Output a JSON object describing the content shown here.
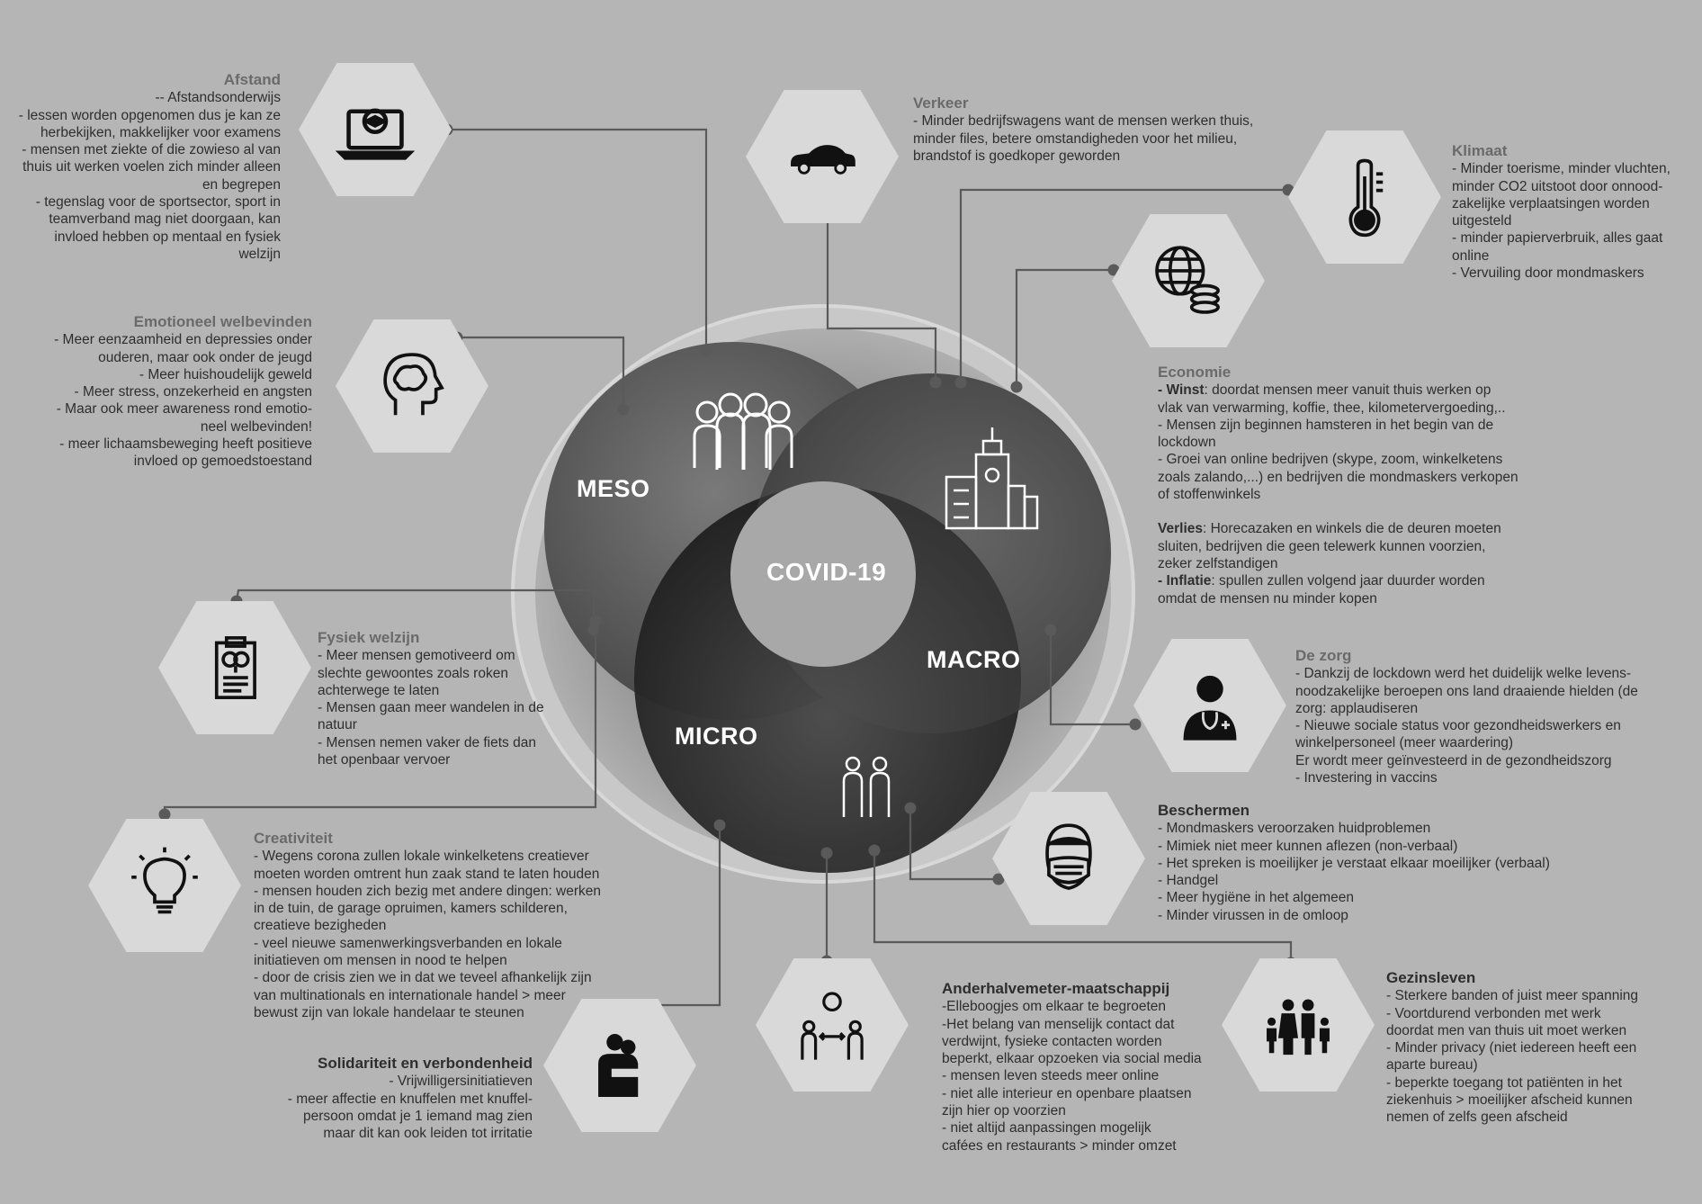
{
  "center": {
    "label": "COVID-19"
  },
  "levels": {
    "meso": "MESO",
    "macro": "MACRO",
    "micro": "MICRO"
  },
  "topics": {
    "afstand": {
      "title": "Afstand",
      "lines": [
        "-- Afstandsonderwijs",
        "- lessen worden opgenomen dus je kan ze",
        "herbekijken, makkelijker voor examens",
        "- mensen met ziekte of die zowieso al van",
        "thuis uit werken voelen zich minder alleen",
        "en begrepen",
        "- tegenslag voor de sportsector, sport in",
        "teamverband mag niet doorgaan, kan",
        "invloed hebben op mentaal en fysiek",
        "welzijn"
      ],
      "icon": "laptop-graduation-icon"
    },
    "emotioneel": {
      "title": "Emotioneel welbevinden",
      "lines": [
        "- Meer eenzaamheid en depressies onder",
        "ouderen, maar ook onder de jeugd",
        "- Meer huishoudelijk geweld",
        "- Meer stress, onzekerheid en angsten",
        "- Maar ook meer awareness rond emotio-",
        "neel welbevinden!",
        "- meer lichaamsbeweging heeft positieve",
        "invloed op gemoedstoestand"
      ],
      "icon": "brain-head-icon"
    },
    "fysiek": {
      "title": "Fysiek welzijn",
      "lines": [
        "- Meer mensen gemotiveerd om",
        "slechte gewoontes zoals roken",
        "achterwege te laten",
        "- Mensen gaan meer wandelen in de",
        "natuur",
        "- Mensen nemen vaker de fiets dan",
        "het openbaar vervoer"
      ],
      "icon": "medical-clipboard-icon"
    },
    "creativiteit": {
      "title": "Creativiteit",
      "lines": [
        "- Wegens corona zullen lokale winkelketens creatiever",
        "moeten worden omtrent hun zaak stand te laten houden",
        "- mensen houden zich bezig met andere dingen: werken",
        "in de tuin, de garage opruimen, kamers schilderen,",
        "creatieve bezigheden",
        "- veel nieuwe samenwerkingsverbanden en lokale",
        "initiatieven om mensen in nood te helpen",
        "- door de crisis zien we in dat we teveel afhankelijk zijn",
        "van multinationals en internationale handel > meer",
        "bewust zijn van lokale handelaar te steunen"
      ],
      "icon": "lightbulb-icon"
    },
    "solidariteit": {
      "title": "Solidariteit en verbondenheid",
      "lines": [
        "- Vrijwilligersinitiatieven",
        "- meer affectie en knuffelen met knuffel-",
        "persoon omdat je 1 iemand mag zien",
        "maar dit kan ook leiden tot irritatie"
      ],
      "icon": "hug-icon"
    },
    "verkeer": {
      "title": "Verkeer",
      "lines": [
        "- Minder bedrijfswagens want de mensen werken thuis,",
        "minder files, betere omstandigheden voor het milieu,",
        "brandstof is goedkoper geworden"
      ],
      "icon": "car-icon"
    },
    "klimaat": {
      "title": "Klimaat",
      "lines": [
        "- Minder toerisme, minder vluchten,",
        "minder CO2 uitstoot door onnood-",
        "zakelijke verplaatsingen worden",
        "uitgesteld",
        "- minder papierverbruik, alles gaat",
        "online",
        "- Vervuiling door mondmaskers"
      ],
      "icon": "thermometer-earth-icon"
    },
    "economie": {
      "title": "Economie",
      "winst_label": "- Winst",
      "winst_lines": [
        ": doordat mensen meer vanuit thuis werken op",
        "vlak van verwarming, koffie, thee, kilometervergoeding,..",
        "- Mensen zijn beginnen hamsteren in het begin van de",
        "lockdown",
        "- Groei van online bedrijven (skype, zoom, winkelketens",
        "zoals zalando,...) en bedrijven die mondmaskers verkopen",
        "of stoffenwinkels"
      ],
      "verlies_label": "Verlies",
      "verlies_lines": [
        ": Horecazaken en winkels die de deuren moeten",
        "sluiten, bedrijven die geen telewerk kunnen voorzien,",
        "zeker zelfstandigen"
      ],
      "inflatie_label": "- Inflatie",
      "inflatie_lines": [
        ": spullen zullen volgend jaar duurder worden",
        "omdat de mensen nu minder kopen"
      ],
      "icon": "globe-coins-icon"
    },
    "zorg": {
      "title": "De zorg",
      "lines": [
        "- Dankzij de lockdown werd het duidelijk welke levens-",
        "noodzakelijke beroepen ons land draaiende hielden (de",
        "zorg: applaudiseren",
        "- Nieuwe sociale status voor gezondheidswerkers en",
        "winkelpersoneel (meer waardering)",
        "Er wordt meer geïnvesteerd in de gezondheidszorg",
        "- Investering in vaccins"
      ],
      "icon": "doctor-icon"
    },
    "beschermen": {
      "title": "Beschermen",
      "lines": [
        "- Mondmaskers veroorzaken huidproblemen",
        "- Mimiek niet meer kunnen aflezen (non-verbaal)",
        "- Het spreken is moeilijker je verstaat elkaar moeilijker (verbaal)",
        "- Handgel",
        "- Meer hygiëne in het algemeen",
        "- Minder virussen in de omloop"
      ],
      "icon": "face-mask-icon"
    },
    "anderhalvemeter": {
      "title": "Anderhalvemeter-maatschappij",
      "lines": [
        "-Elleboogjes om elkaar te begroeten",
        "-Het belang van menselijk contact dat",
        "verdwijnt, fysieke contacten worden",
        "beperkt, elkaar opzoeken via social media",
        "- mensen leven steeds meer online",
        "- niet alle interieur en openbare plaatsen",
        "zijn hier op voorzien",
        "- niet altijd aanpassingen mogelijk",
        "cafées en restaurants > minder omzet"
      ],
      "icon": "social-distance-icon"
    },
    "gezinsleven": {
      "title": "Gezinsleven",
      "lines": [
        "- Sterkere banden of juist meer spanning",
        "- Voortdurend verbonden met werk",
        "doordat men van thuis uit moet werken",
        "- Minder privacy (niet iedereen heeft een",
        "aparte bureau)",
        "- beperkte toegang tot patiënten in het",
        "ziekenhuis > moeilijker afscheid kunnen",
        "nemen of zelfs geen afscheid"
      ],
      "icon": "family-icon"
    }
  },
  "colors": {
    "background": "#b5b5b5",
    "hexagon": "#d9d9d9",
    "connector": "#5a5a5a"
  }
}
